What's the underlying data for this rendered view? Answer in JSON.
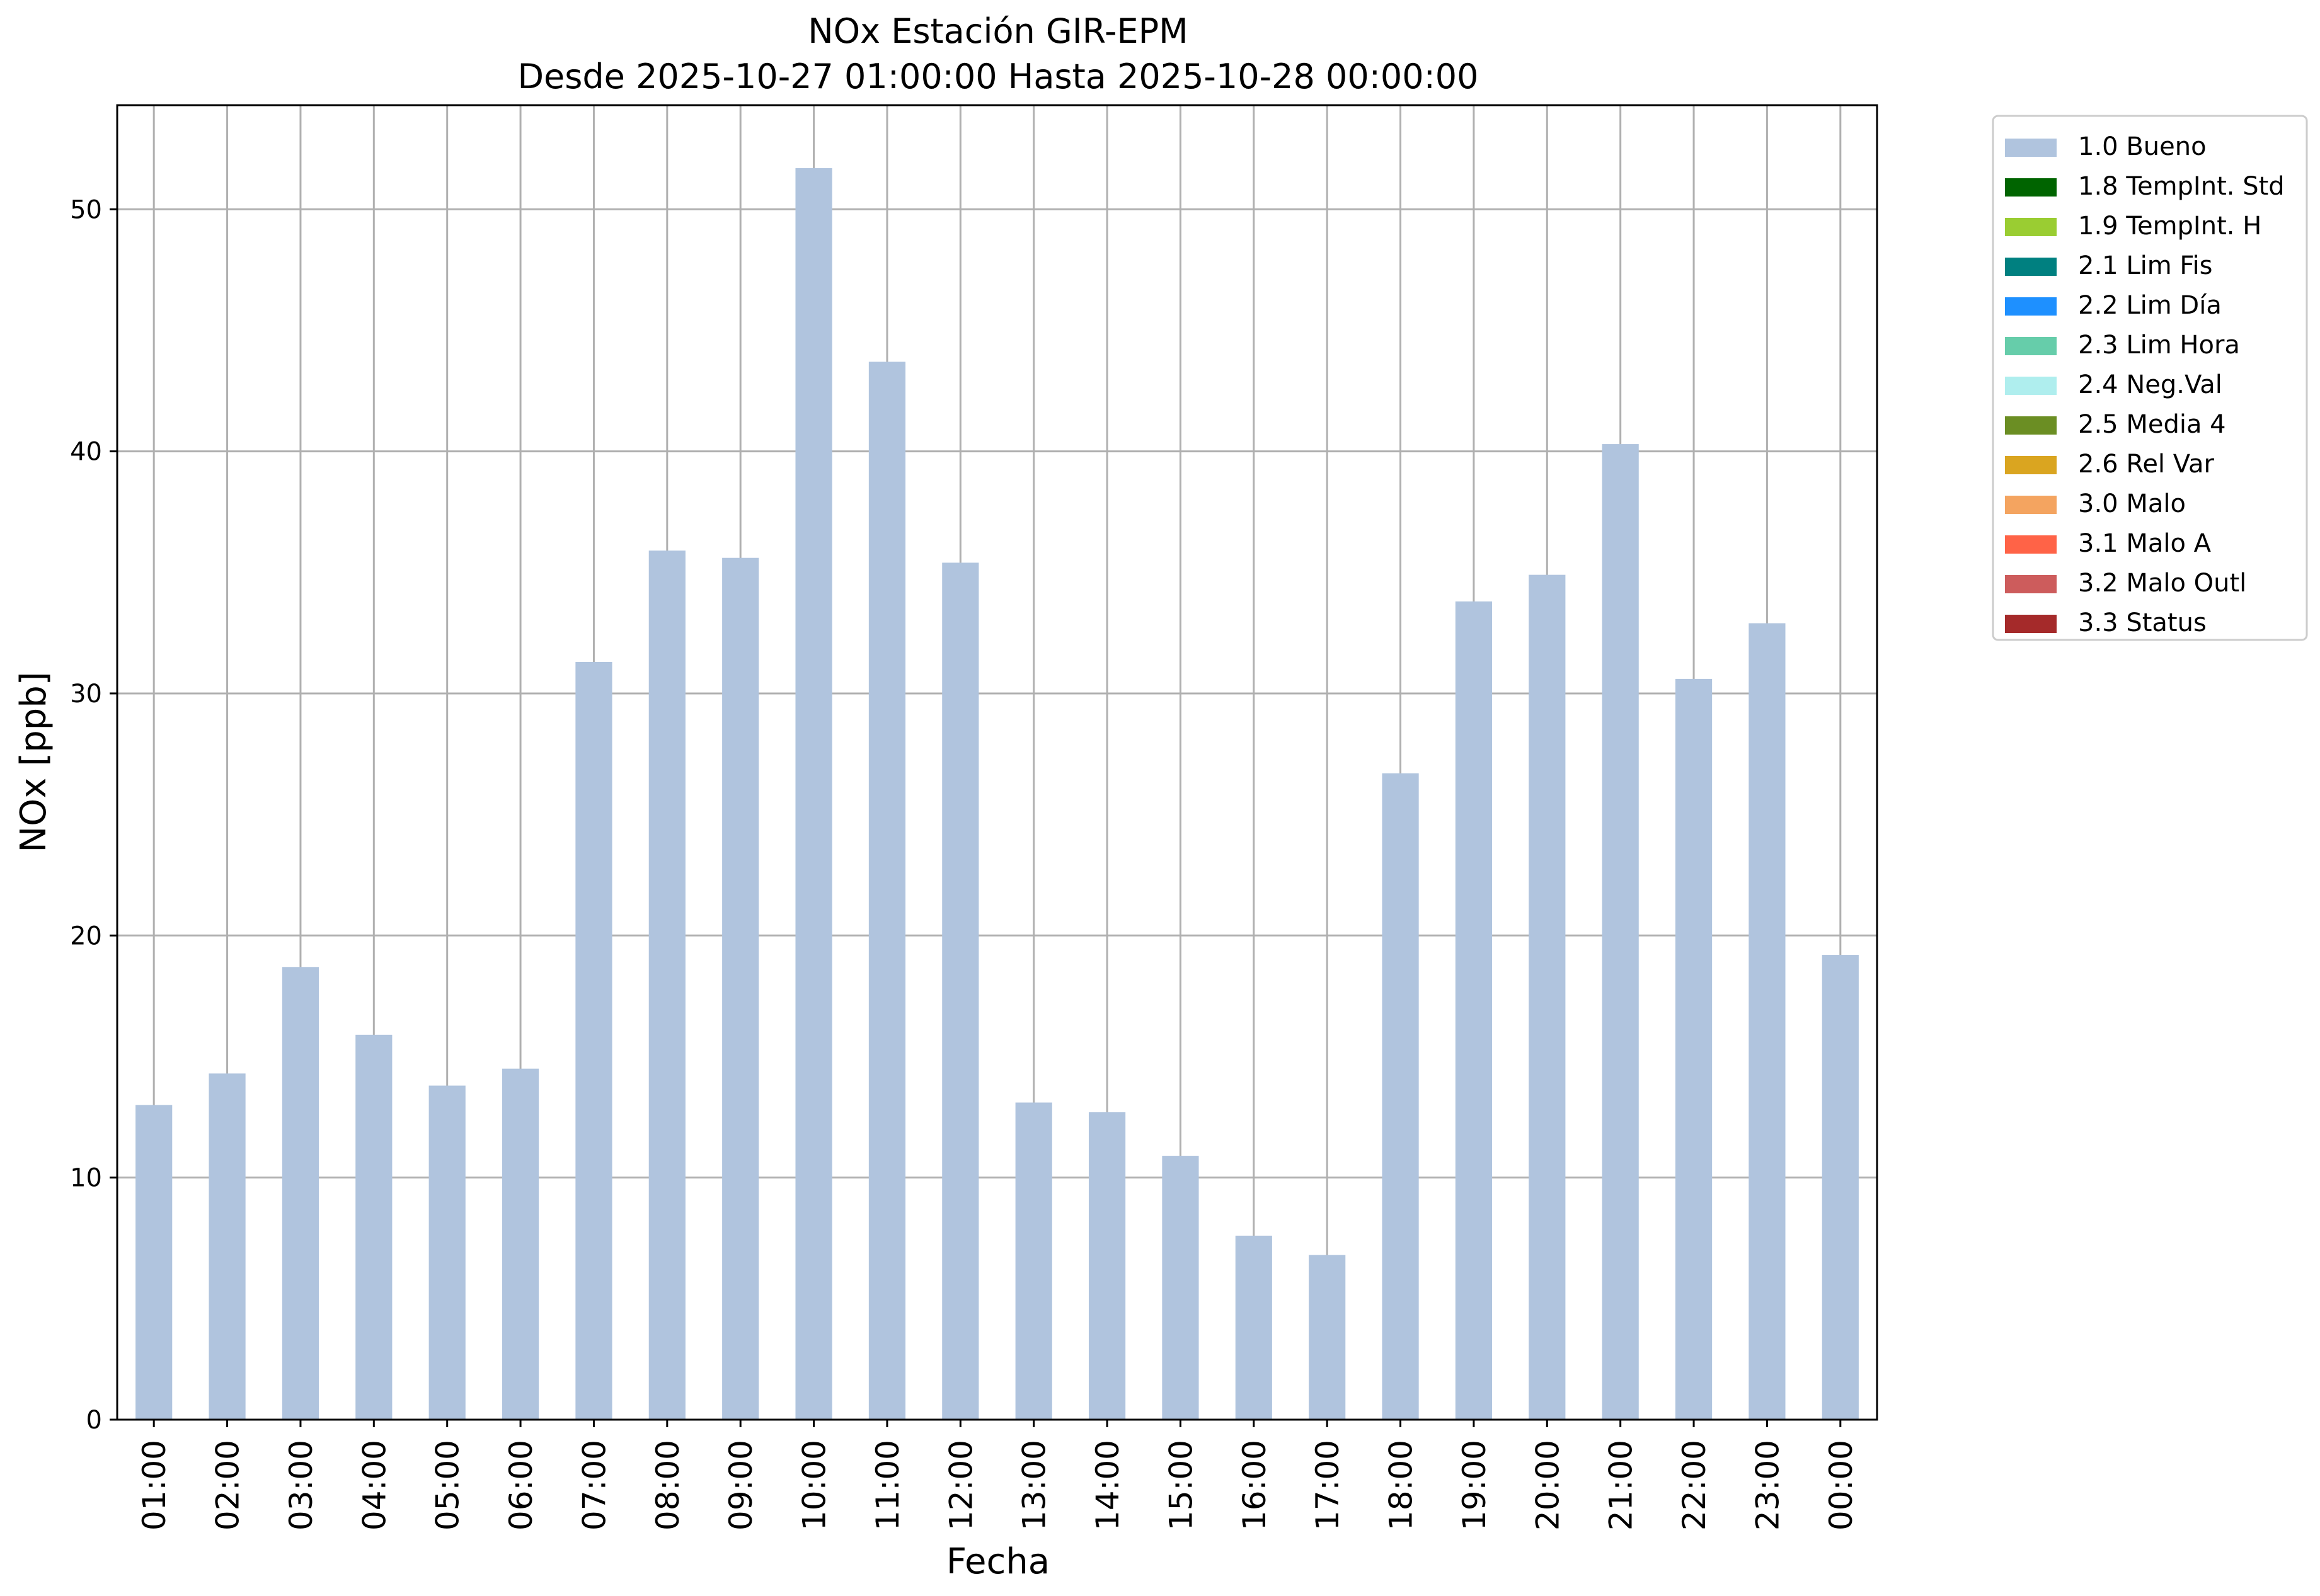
{
  "chart_data": {
    "type": "bar",
    "title": "NOx Estación GIR-EPM",
    "subtitle": "Desde 2025-10-27 01:00:00 Hasta 2025-10-28 00:00:00",
    "xlabel": "Fecha",
    "ylabel": "NOx [ppb]",
    "ylim": [
      0,
      54.3
    ],
    "yticks": [
      0,
      10,
      20,
      30,
      40,
      50
    ],
    "grid": true,
    "legend_position": "outside-right-top",
    "categories": [
      "01:00",
      "02:00",
      "03:00",
      "04:00",
      "05:00",
      "06:00",
      "07:00",
      "08:00",
      "09:00",
      "10:00",
      "11:00",
      "12:00",
      "13:00",
      "14:00",
      "15:00",
      "16:00",
      "17:00",
      "18:00",
      "19:00",
      "20:00",
      "21:00",
      "22:00",
      "23:00",
      "00:00"
    ],
    "series": [
      {
        "name": "1.0 Bueno",
        "color": "#b0c4de",
        "values": [
          13.0,
          14.3,
          18.7,
          15.9,
          13.8,
          14.5,
          31.3,
          35.9,
          35.6,
          51.7,
          43.7,
          35.4,
          13.1,
          12.7,
          10.9,
          7.6,
          6.8,
          26.7,
          33.8,
          34.9,
          40.3,
          30.6,
          32.9,
          19.2
        ]
      }
    ],
    "legend": [
      {
        "label": "1.0 Bueno",
        "color": "#b0c4de"
      },
      {
        "label": "1.8 TempInt. Std",
        "color": "#006400"
      },
      {
        "label": "1.9 TempInt. H",
        "color": "#9acd32"
      },
      {
        "label": "2.1 Lim Fis",
        "color": "#008080"
      },
      {
        "label": "2.2 Lim Día",
        "color": "#1e90ff"
      },
      {
        "label": "2.3 Lim Hora",
        "color": "#66cdaa"
      },
      {
        "label": "2.4 Neg.Val",
        "color": "#afeeee"
      },
      {
        "label": "2.5 Media 4",
        "color": "#6b8e23"
      },
      {
        "label": "2.6 Rel Var",
        "color": "#daa520"
      },
      {
        "label": "3.0 Malo",
        "color": "#f4a460"
      },
      {
        "label": "3.1 Malo A",
        "color": "#ff6347"
      },
      {
        "label": "3.2 Malo Outl",
        "color": "#cd5c5c"
      },
      {
        "label": "3.3 Status",
        "color": "#a52a2a"
      }
    ]
  }
}
